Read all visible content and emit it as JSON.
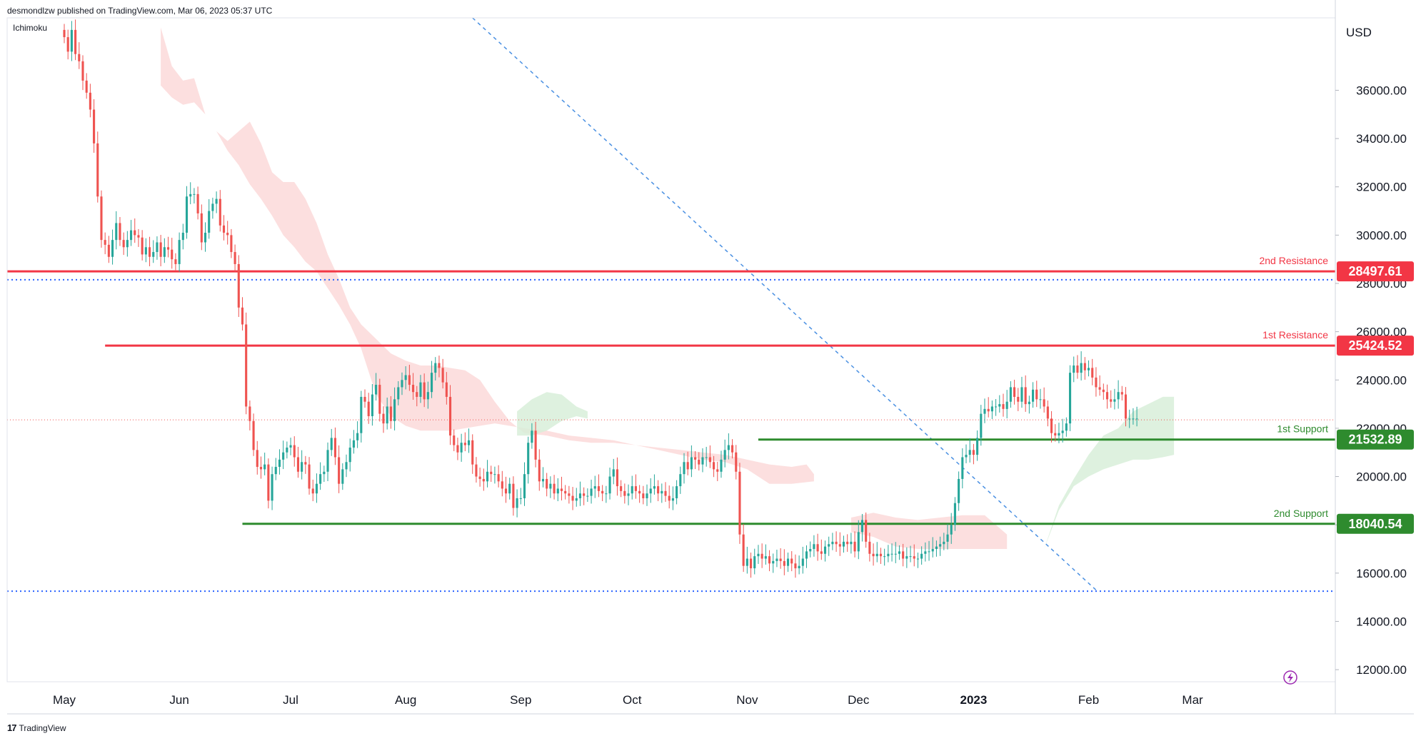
{
  "header": {
    "publisher_line": "desmondlzw published on TradingView.com, Mar 06, 2023 05:37 UTC",
    "indicator": "Ichimoku",
    "currency": "USD"
  },
  "footer": {
    "brand": "TradingView",
    "logo_text": "17"
  },
  "colors": {
    "up": "#26a69a",
    "down": "#ef5350",
    "resistance": "#f23645",
    "support": "#2e8b2e",
    "trend": "#4a90e2",
    "cloud_red": "#fbd9d9",
    "cloud_green": "#d8efd9"
  },
  "chart_data": {
    "type": "candlestick",
    "y_axis": {
      "min": 11500,
      "max": 39000,
      "ticks": [
        "12000.00",
        "14000.00",
        "16000.00",
        "18000.00",
        "20000.00",
        "22000.00",
        "24000.00",
        "26000.00",
        "28000.00",
        "30000.00",
        "32000.00",
        "34000.00",
        "36000.00"
      ],
      "tick_values": [
        12000,
        14000,
        16000,
        18000,
        20000,
        22000,
        24000,
        26000,
        28000,
        30000,
        32000,
        34000,
        36000
      ]
    },
    "x_axis": {
      "labels": [
        "May",
        "Jun",
        "Jul",
        "Aug",
        "Sep",
        "Oct",
        "Nov",
        "Dec",
        "2023",
        "Feb",
        "Mar"
      ],
      "label_day_index": [
        0,
        31,
        61,
        92,
        123,
        153,
        184,
        214,
        245,
        276,
        304
      ],
      "days": 330
    },
    "levels": [
      {
        "name": "2nd Resistance",
        "value": 28497.61,
        "label": "28497.61",
        "kind": "resistance",
        "start_day": 0
      },
      {
        "name": "1st Resistance",
        "value": 25424.52,
        "label": "25424.52",
        "kind": "resistance",
        "start_day": 11
      },
      {
        "name": "1st Support",
        "value": 21532.89,
        "label": "21532.89",
        "kind": "support",
        "start_day": 187
      },
      {
        "name": "2nd Support",
        "value": 18040.54,
        "label": "18040.54",
        "kind": "support",
        "start_day": 48
      }
    ],
    "dotted_lines": [
      28150,
      15250
    ],
    "current_price_line": 22350,
    "trendline": {
      "start": [
        110,
        39000
      ],
      "end": [
        278,
        15300
      ]
    },
    "closes": [
      38200,
      37600,
      38500,
      37500,
      37200,
      36400,
      35900,
      35200,
      33800,
      31600,
      29800,
      29600,
      29100,
      29800,
      30500,
      29800,
      29500,
      29800,
      30200,
      30000,
      29900,
      29200,
      29500,
      29100,
      29300,
      29700,
      29100,
      29500,
      29400,
      29000,
      28800,
      29800,
      30100,
      31600,
      31700,
      31700,
      30900,
      29700,
      30100,
      31000,
      31300,
      31500,
      30400,
      30100,
      30000,
      29300,
      28800,
      27000,
      26300,
      22900,
      22300,
      21100,
      20400,
      20300,
      20500,
      19000,
      20100,
      20400,
      20700,
      21000,
      21200,
      21300,
      20800,
      20200,
      20600,
      20500,
      19500,
      19300,
      19700,
      20100,
      20200,
      21100,
      21600,
      20800,
      19700,
      20300,
      20600,
      21200,
      21500,
      21800,
      23300,
      23100,
      22500,
      23400,
      23800,
      22600,
      22200,
      22900,
      22300,
      23200,
      23700,
      24000,
      24200,
      23800,
      23500,
      23300,
      23900,
      23200,
      23500,
      24300,
      24700,
      24500,
      23900,
      23300,
      21700,
      21300,
      21000,
      21400,
      21300,
      21500,
      20500,
      20000,
      19900,
      19800,
      20200,
      20100,
      20100,
      19800,
      19500,
      19300,
      19700,
      18700,
      19100,
      19100,
      20100,
      21400,
      21900,
      20700,
      19800,
      19900,
      19500,
      19700,
      19300,
      19500,
      19400,
      19300,
      19200,
      19000,
      19100,
      19300,
      19200,
      19200,
      19500,
      19600,
      19400,
      19300,
      19300,
      20000,
      20300,
      19600,
      19400,
      19200,
      19300,
      19600,
      19400,
      19300,
      19100,
      19300,
      19500,
      19600,
      19300,
      19400,
      19200,
      19000,
      19100,
      19600,
      20100,
      20600,
      20300,
      20800,
      20700,
      20500,
      20800,
      20800,
      20600,
      20300,
      20200,
      20700,
      21100,
      21300,
      21000,
      20200,
      17600,
      16300,
      16600,
      16200,
      16700,
      16800,
      16600,
      16700,
      16400,
      16500,
      16600,
      16500,
      16300,
      16600,
      16400,
      16200,
      16300,
      16600,
      16900,
      17000,
      17200,
      16900,
      16800,
      17100,
      17200,
      17300,
      17200,
      17100,
      17300,
      17200,
      17300,
      16900,
      17700,
      18200,
      17300,
      16800,
      16700,
      16800,
      16700,
      16700,
      16800,
      16800,
      16800,
      16900,
      16600,
      16700,
      16700,
      16600,
      16600,
      16800,
      16900,
      16900,
      17000,
      17100,
      17200,
      17300,
      17600,
      18000,
      18900,
      19900,
      20800,
      20900,
      21100,
      20900,
      21600,
      22600,
      22800,
      22700,
      22900,
      22900,
      23000,
      22800,
      23100,
      23700,
      23300,
      23100,
      23700,
      23000,
      23100,
      23600,
      23200,
      23200,
      22900,
      22400,
      21800,
      21700,
      21800,
      21900,
      22200,
      24300,
      24600,
      24300,
      24700,
      24400,
      24500,
      24100,
      23700,
      23600,
      23500,
      23200,
      23100,
      23200,
      23500,
      23400,
      22400,
      22400,
      22400,
      22400
    ],
    "cloud_red": [
      [
        26,
        38600
      ],
      [
        29,
        37000
      ],
      [
        32,
        36400
      ],
      [
        35,
        36500
      ],
      [
        38,
        35000
      ],
      [
        41,
        34300
      ],
      [
        44,
        33900
      ],
      [
        47,
        34300
      ],
      [
        50,
        34700
      ],
      [
        53,
        33800
      ],
      [
        56,
        32600
      ],
      [
        59,
        32200
      ],
      [
        62,
        32200
      ],
      [
        65,
        31500
      ],
      [
        68,
        30500
      ],
      [
        71,
        29200
      ],
      [
        74,
        28200
      ],
      [
        77,
        27000
      ],
      [
        80,
        26300
      ],
      [
        84,
        25700
      ],
      [
        88,
        25100
      ],
      [
        92,
        24800
      ],
      [
        96,
        24600
      ],
      [
        100,
        24600
      ],
      [
        104,
        24500
      ],
      [
        108,
        24400
      ],
      [
        112,
        24000
      ],
      [
        116,
        23100
      ],
      [
        120,
        22300
      ],
      [
        124,
        21800
      ],
      [
        130,
        21700
      ],
      [
        136,
        21500
      ],
      [
        142,
        21400
      ],
      [
        148,
        21400
      ],
      [
        154,
        21300
      ],
      [
        160,
        21200
      ],
      [
        166,
        21100
      ],
      [
        172,
        21000
      ],
      [
        178,
        20900
      ],
      [
        184,
        20700
      ],
      [
        190,
        20500
      ],
      [
        196,
        20400
      ],
      [
        200,
        20500
      ],
      [
        202,
        20100
      ],
      [
        202,
        19800
      ],
      [
        196,
        19700
      ],
      [
        190,
        19700
      ],
      [
        184,
        20300
      ],
      [
        178,
        20600
      ],
      [
        172,
        20700
      ],
      [
        166,
        20900
      ],
      [
        160,
        21100
      ],
      [
        154,
        21300
      ],
      [
        148,
        21500
      ],
      [
        142,
        21600
      ],
      [
        136,
        21700
      ],
      [
        130,
        21900
      ],
      [
        124,
        22000
      ],
      [
        120,
        22100
      ],
      [
        116,
        22200
      ],
      [
        112,
        22100
      ],
      [
        108,
        22000
      ],
      [
        104,
        21900
      ],
      [
        100,
        21900
      ],
      [
        96,
        21900
      ],
      [
        92,
        22100
      ],
      [
        88,
        22500
      ],
      [
        84,
        23400
      ],
      [
        80,
        25300
      ],
      [
        77,
        26300
      ],
      [
        74,
        27100
      ],
      [
        71,
        27800
      ],
      [
        68,
        28500
      ],
      [
        65,
        28900
      ],
      [
        62,
        29500
      ],
      [
        59,
        30000
      ],
      [
        56,
        30800
      ],
      [
        53,
        31500
      ],
      [
        50,
        32100
      ],
      [
        47,
        32900
      ],
      [
        44,
        33500
      ],
      [
        41,
        34300
      ],
      [
        38,
        35000
      ],
      [
        35,
        35500
      ],
      [
        32,
        35400
      ],
      [
        29,
        35700
      ],
      [
        26,
        36200
      ]
    ],
    "cloud_red_2": [
      [
        212,
        18300
      ],
      [
        218,
        18500
      ],
      [
        224,
        18300
      ],
      [
        230,
        18200
      ],
      [
        236,
        18300
      ],
      [
        242,
        18400
      ],
      [
        248,
        18400
      ],
      [
        254,
        17600
      ],
      [
        254,
        17000
      ],
      [
        248,
        17000
      ],
      [
        242,
        17000
      ],
      [
        236,
        17000
      ],
      [
        230,
        17000
      ],
      [
        224,
        17100
      ],
      [
        218,
        17500
      ],
      [
        212,
        17700
      ]
    ],
    "cloud_green": [
      [
        122,
        22700
      ],
      [
        126,
        23200
      ],
      [
        130,
        23500
      ],
      [
        134,
        23400
      ],
      [
        138,
        22900
      ],
      [
        141,
        22700
      ],
      [
        141,
        22400
      ],
      [
        138,
        22500
      ],
      [
        134,
        22300
      ],
      [
        130,
        21900
      ],
      [
        126,
        21700
      ],
      [
        122,
        21700
      ]
    ],
    "cloud_green_2": [
      [
        264,
        17000
      ],
      [
        268,
        18800
      ],
      [
        272,
        19900
      ],
      [
        276,
        20900
      ],
      [
        280,
        21700
      ],
      [
        284,
        22000
      ],
      [
        288,
        22700
      ],
      [
        292,
        23000
      ],
      [
        296,
        23300
      ],
      [
        299,
        23300
      ],
      [
        299,
        20900
      ],
      [
        296,
        20800
      ],
      [
        292,
        20700
      ],
      [
        288,
        20700
      ],
      [
        284,
        20500
      ],
      [
        280,
        20300
      ],
      [
        276,
        20000
      ],
      [
        272,
        19600
      ],
      [
        268,
        18600
      ],
      [
        264,
        17000
      ]
    ]
  }
}
